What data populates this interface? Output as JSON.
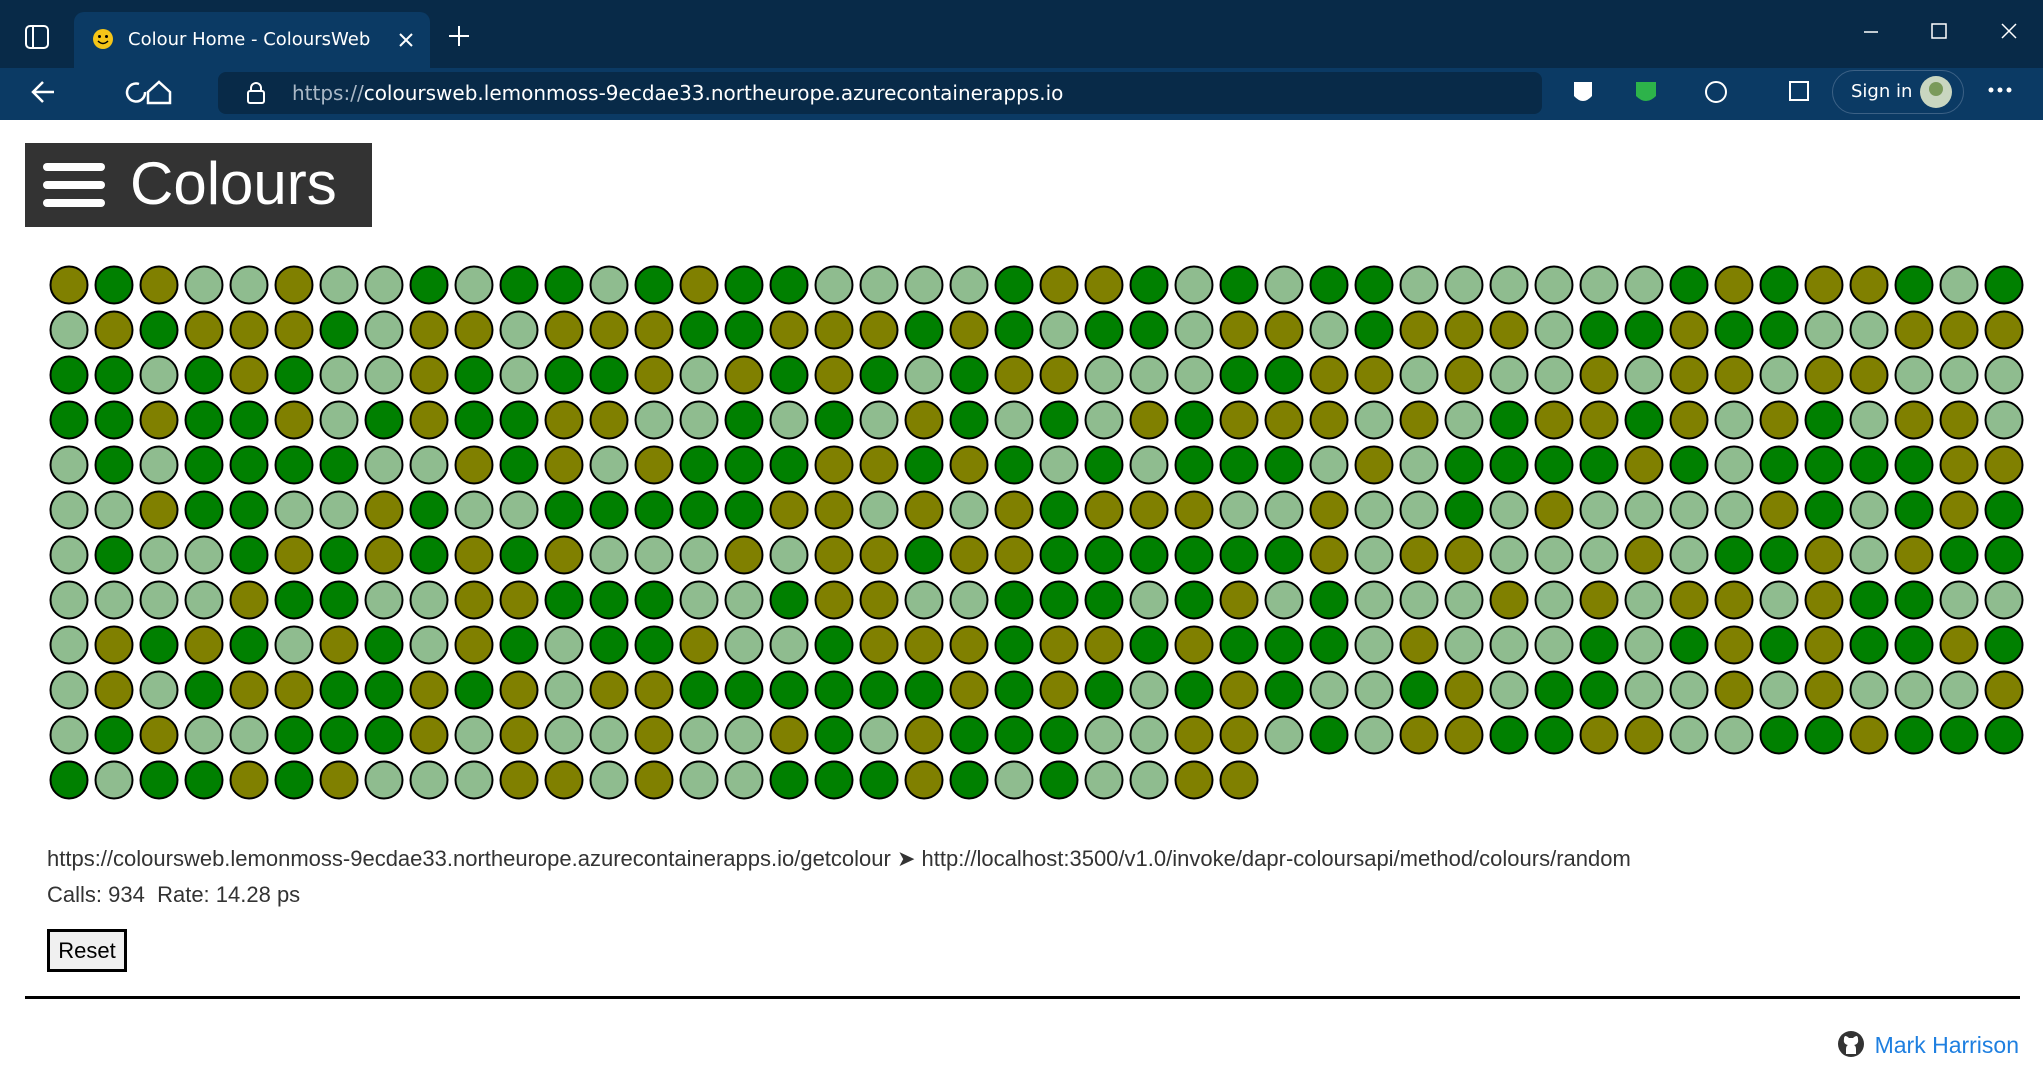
{
  "browser": {
    "tab_title": "Colour Home - ColoursWeb",
    "url_scheme": "https://",
    "url_host": "coloursweb.lemonmoss-9ecdae33.northeurope.azurecontainerapps.io",
    "sign_in": "Sign in"
  },
  "header": {
    "title": "Colours"
  },
  "status": {
    "route": "https://coloursweb.lemonmoss-9ecdae33.northeurope.azurecontainerapps.io/getcolour ➤ http://localhost:3500/v1.0/invoke/dapr-coloursapi/method/colours/random",
    "calls": "Calls: 934",
    "rate": "Rate: 14.28 ps"
  },
  "reset_button": "Reset",
  "footer": {
    "author": "Mark Harrison"
  }
}
